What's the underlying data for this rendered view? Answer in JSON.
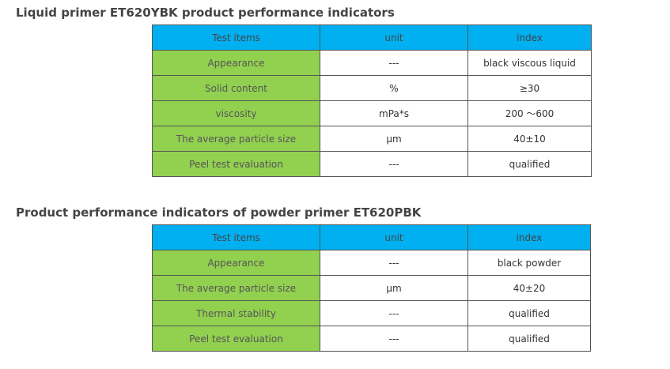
{
  "colors": {
    "header_bg": "#00b0f0",
    "label_bg": "#92d050",
    "cell_bg": "#ffffff",
    "border": "#555555",
    "title_text": "#444444"
  },
  "section1": {
    "title": "Liquid primer ET620YBK product performance indicators",
    "headers": [
      "Test items",
      "unit",
      "index"
    ],
    "rows": [
      {
        "item": "Appearance",
        "unit": "---",
        "index": "black viscous liquid"
      },
      {
        "item": "Solid content",
        "unit": "%",
        "index": "≥30"
      },
      {
        "item": "viscosity",
        "unit": "mPa*s",
        "index": "200 ～600"
      },
      {
        "item": "The average particle size",
        "unit": "μm",
        "index": "40±10"
      },
      {
        "item": "Peel test evaluation",
        "unit": "---",
        "index": "qualified"
      }
    ]
  },
  "section2": {
    "title": "Product performance indicators of powder primer ET620PBK",
    "headers": [
      "Test items",
      "unit",
      "index"
    ],
    "rows": [
      {
        "item": "Appearance",
        "unit": "---",
        "index": "black powder"
      },
      {
        "item": "The average particle size",
        "unit": "μm",
        "index": "40±20"
      },
      {
        "item": "Thermal stability",
        "unit": "---",
        "index": "qualified"
      },
      {
        "item": "Peel test evaluation",
        "unit": "---",
        "index": "qualified"
      }
    ]
  }
}
